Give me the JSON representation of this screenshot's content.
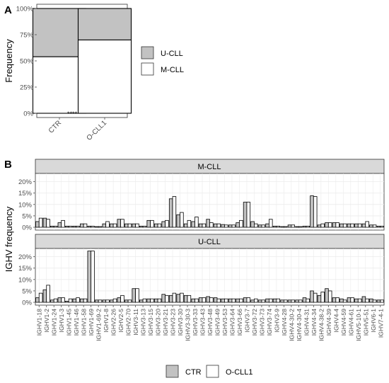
{
  "colors": {
    "ctr": "#c2c2c2",
    "ocll1": "#ffffff",
    "grid": "#ebebeb",
    "strip": "#d9d9d9",
    "axis": "#4d4d4d",
    "stroke": "#000000"
  },
  "panels": {
    "a": "A",
    "b": "B"
  },
  "chart_data": [
    {
      "type": "bar",
      "stacked": true,
      "panel": "A",
      "categories": [
        "CTR",
        "O-CLL1"
      ],
      "series": [
        {
          "name": "M-CLL",
          "values": [
            54,
            70
          ]
        },
        {
          "name": "U-CLL",
          "values": [
            46,
            30
          ]
        }
      ],
      "ylabel": "Frequency",
      "yticks": [
        "0%",
        "25%",
        "50%",
        "75%",
        "100%"
      ],
      "ylim": [
        0,
        100
      ],
      "annotation": "****",
      "legend": [
        "U-CLL",
        "M-CLL"
      ],
      "legend_position": "right",
      "grid": true
    },
    {
      "type": "bar",
      "panel": "B",
      "ylabel": "IGHV frequency",
      "yticks": [
        "0%",
        "5%",
        "10%",
        "15%",
        "20%"
      ],
      "ylim": [
        0,
        23
      ],
      "grid": true,
      "legend": [
        "CTR",
        "O-CLL1"
      ],
      "legend_position": "bottom",
      "categories": [
        "IGHV1-18",
        "IGHV1-2",
        "IGHV1-24",
        "IGHV1-3",
        "IGHV1-45",
        "IGHV1-46",
        "IGHV1-58",
        "IGHV1-69",
        "IGHV1-69-2",
        "IGHV1-8",
        "IGHV2-26",
        "IGHV2-5",
        "IGHV2-70",
        "IGHV3-11",
        "IGHV3-13",
        "IGHV3-15",
        "IGHV3-20",
        "IGHV3-21",
        "IGHV3-23",
        "IGHV3-30",
        "IGHV3-30-3",
        "IGHV3-33",
        "IGHV3-43",
        "IGHV3-48",
        "IGHV3-49",
        "IGHV3-53",
        "IGHV3-64",
        "IGHV3-66",
        "IGHV3-7",
        "IGHV3-72",
        "IGHV3-73",
        "IGHV3-74",
        "IGHV3-9",
        "IGHV4-28",
        "IGHV4-30-2",
        "IGHV4-30-4",
        "IGHV4-31",
        "IGHV4-34",
        "IGHV4-38-2",
        "IGHV4-39",
        "IGHV4-4",
        "IGHV4-59",
        "IGHV4-61",
        "IGHV5-10-1",
        "IGHV5-51",
        "IGHV6-1",
        "IGHV7-4-1"
      ],
      "facets": [
        {
          "title": "M-CLL",
          "series": [
            {
              "name": "CTR",
              "values": [
                2.5,
                4,
                0.5,
                2,
                0.5,
                0.5,
                1.5,
                0.5,
                0.3,
                1.5,
                1.5,
                3.5,
                1.5,
                1.5,
                0.5,
                3,
                1.5,
                2.5,
                12.5,
                5.5,
                1.5,
                2.5,
                1.5,
                3.5,
                1.5,
                1.2,
                1,
                2,
                11,
                2.5,
                1,
                1.5,
                0.5,
                0.3,
                1,
                0.3,
                0.5,
                13.8,
                1,
                2,
                2,
                1.5,
                1.5,
                1.5,
                1.5,
                1,
                0.5
              ]
            },
            {
              "name": "O-CLL1",
              "values": [
                4,
                3.5,
                0.5,
                3,
                0.5,
                0.5,
                1.5,
                0.5,
                0.3,
                2.5,
                1.5,
                3.5,
                1.5,
                1.5,
                0.5,
                3,
                1.5,
                3,
                13.5,
                6.5,
                3,
                4.5,
                1.5,
                2,
                1.5,
                1,
                1,
                3,
                11,
                1.5,
                1,
                3.5,
                0.5,
                0.3,
                1,
                0.3,
                0.5,
                13.5,
                1.5,
                2,
                2,
                1.5,
                1.5,
                1.5,
                2.5,
                1,
                0.5
              ]
            }
          ]
        },
        {
          "title": "U-CLL",
          "series": [
            {
              "name": "CTR",
              "values": [
                2,
                5.5,
                1,
                2,
                0.5,
                1.5,
                1.5,
                22.5,
                1,
                1,
                1,
                2,
                1,
                6,
                1,
                1.5,
                1.5,
                3.5,
                3,
                3.5,
                3,
                1.5,
                2,
                2.5,
                2,
                1.5,
                1.5,
                1.5,
                2,
                1,
                1,
                1.5,
                1.5,
                1,
                1,
                1,
                2,
                5,
                3,
                6,
                2,
                1.5,
                2,
                1.5,
                2.5,
                1.5,
                1
              ]
            },
            {
              "name": "O-CLL1",
              "values": [
                4,
                7.5,
                1.5,
                2,
                1.5,
                2,
                1.5,
                22.5,
                1,
                1,
                1.5,
                3,
                1,
                6,
                1.5,
                1.5,
                1.5,
                3,
                4,
                4,
                3,
                1.5,
                2,
                2,
                1.5,
                1.5,
                1.5,
                1.5,
                2,
                1.5,
                1,
                1.5,
                1.5,
                1,
                1,
                1,
                1.5,
                4,
                4.5,
                5,
                2,
                1,
                2,
                1.5,
                1.5,
                1,
                1
              ]
            }
          ]
        }
      ]
    }
  ]
}
